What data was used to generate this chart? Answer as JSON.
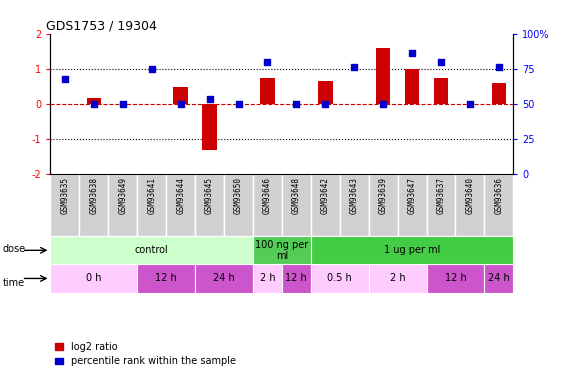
{
  "title": "GDS1753 / 19304",
  "samples": [
    "GSM93635",
    "GSM93638",
    "GSM93649",
    "GSM93641",
    "GSM93644",
    "GSM93645",
    "GSM93650",
    "GSM93646",
    "GSM93648",
    "GSM93642",
    "GSM93643",
    "GSM93639",
    "GSM93647",
    "GSM93637",
    "GSM93640",
    "GSM93636"
  ],
  "log2_ratio": [
    0.0,
    0.18,
    0.0,
    0.0,
    0.48,
    -1.3,
    0.0,
    0.75,
    0.0,
    0.65,
    0.0,
    1.6,
    1.0,
    0.75,
    0.0,
    0.6
  ],
  "percentile_left": [
    0.7,
    0.0,
    0.0,
    1.0,
    0.0,
    0.15,
    0.0,
    1.2,
    0.0,
    0.0,
    1.05,
    0.0,
    1.45,
    1.2,
    0.0,
    1.05
  ],
  "dose_groups": [
    {
      "label": "control",
      "start": 0,
      "end": 7,
      "color": "#ccffcc"
    },
    {
      "label": "100 ng per\nml",
      "start": 7,
      "end": 9,
      "color": "#55cc55"
    },
    {
      "label": "1 ug per ml",
      "start": 9,
      "end": 16,
      "color": "#44cc44"
    }
  ],
  "time_groups": [
    {
      "label": "0 h",
      "start": 0,
      "end": 3,
      "color": "#ffccff"
    },
    {
      "label": "12 h",
      "start": 3,
      "end": 5,
      "color": "#cc55cc"
    },
    {
      "label": "24 h",
      "start": 5,
      "end": 7,
      "color": "#cc55cc"
    },
    {
      "label": "2 h",
      "start": 7,
      "end": 8,
      "color": "#ffccff"
    },
    {
      "label": "12 h",
      "start": 8,
      "end": 9,
      "color": "#cc55cc"
    },
    {
      "label": "0.5 h",
      "start": 9,
      "end": 11,
      "color": "#ffccff"
    },
    {
      "label": "2 h",
      "start": 11,
      "end": 13,
      "color": "#ffccff"
    },
    {
      "label": "12 h",
      "start": 13,
      "end": 15,
      "color": "#cc55cc"
    },
    {
      "label": "24 h",
      "start": 15,
      "end": 16,
      "color": "#cc55cc"
    }
  ],
  "bar_color": "#cc0000",
  "dot_color": "#0000cc",
  "left_ylim": [
    -2,
    2
  ],
  "right_ylim": [
    0,
    100
  ],
  "left_yticks": [
    -2,
    -1,
    0,
    1,
    2
  ],
  "right_yticks": [
    0,
    25,
    50,
    75,
    100
  ],
  "right_yticklabels": [
    "0",
    "25",
    "50",
    "75",
    "100%"
  ],
  "cell_bg": "#d0d0d0",
  "cell_border": "#ffffff"
}
